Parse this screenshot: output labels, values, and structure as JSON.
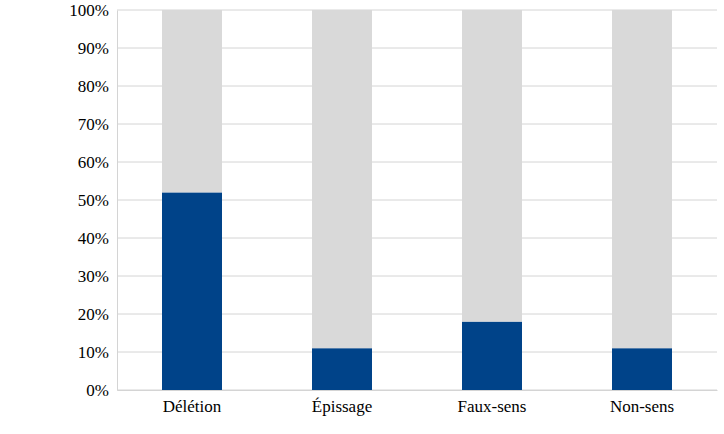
{
  "chart_data": {
    "type": "bar",
    "categories": [
      "Délétion",
      "Épissage",
      "Faux-sens",
      "Non-sens"
    ],
    "series": [
      {
        "color": "#004389",
        "values": [
          52,
          11,
          18,
          11
        ]
      },
      {
        "color": "#d9d9d9",
        "values": [
          48,
          89,
          82,
          89
        ]
      }
    ],
    "stacked": true,
    "ylim": [
      0,
      100
    ],
    "yticks": [
      {
        "value": 0,
        "label": "0%"
      },
      {
        "value": 10,
        "label": "10%"
      },
      {
        "value": 20,
        "label": "20%"
      },
      {
        "value": 30,
        "label": "30%"
      },
      {
        "value": 40,
        "label": "40%"
      },
      {
        "value": 50,
        "label": "50%"
      },
      {
        "value": 60,
        "label": "60%"
      },
      {
        "value": 70,
        "label": "70%"
      },
      {
        "value": 80,
        "label": "80%"
      },
      {
        "value": 90,
        "label": "90%"
      },
      {
        "value": 100,
        "label": "100%"
      }
    ],
    "grid": true
  }
}
